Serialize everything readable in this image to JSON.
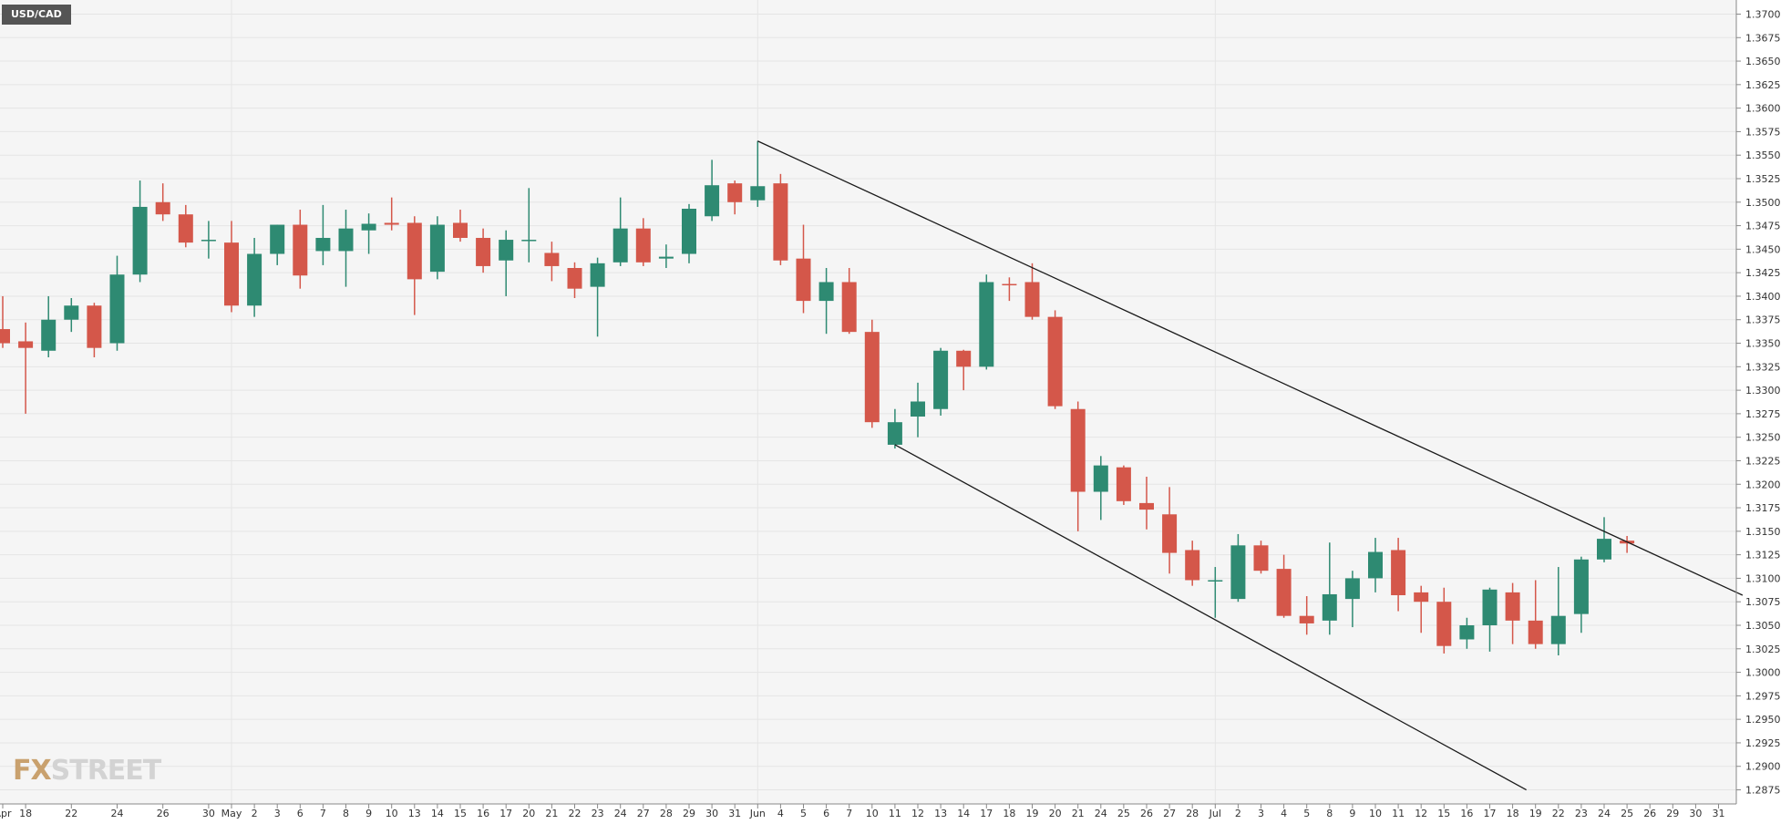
{
  "chart_data": {
    "type": "candlestick",
    "symbol": "USD/CAD",
    "watermark": {
      "part1": "FX",
      "part2": "STREET"
    },
    "colors": {
      "up": "#2e8a72",
      "down": "#d4574a",
      "background": "#f5f5f5",
      "grid": "#e5e5e5",
      "trendline": "#1a1a1a",
      "axis_text": "#333333"
    },
    "grid": true,
    "ylim": [
      1.286,
      1.3715
    ],
    "y_ticks": [
      "1.2875",
      "1.2900",
      "1.2925",
      "1.2950",
      "1.2975",
      "1.3000",
      "1.3025",
      "1.3050",
      "1.3075",
      "1.3100",
      "1.3125",
      "1.3150",
      "1.3175",
      "1.3200",
      "1.3225",
      "1.3250",
      "1.3275",
      "1.3300",
      "1.3325",
      "1.3350",
      "1.3375",
      "1.3400",
      "1.3425",
      "1.3450",
      "1.3475",
      "1.3500",
      "1.3525",
      "1.3550",
      "1.3575",
      "1.3600",
      "1.3625",
      "1.3650",
      "1.3675",
      "1.3700"
    ],
    "x_labels": [
      "Apr",
      "18",
      "",
      "22",
      "",
      "24",
      "",
      "26",
      "",
      "30",
      "May",
      "2",
      "3",
      "6",
      "7",
      "8",
      "9",
      "10",
      "13",
      "14",
      "15",
      "16",
      "17",
      "20",
      "21",
      "22",
      "23",
      "24",
      "27",
      "28",
      "29",
      "30",
      "31",
      "Jun",
      "4",
      "5",
      "6",
      "7",
      "10",
      "11",
      "12",
      "13",
      "14",
      "17",
      "18",
      "19",
      "20",
      "21",
      "24",
      "25",
      "26",
      "27",
      "28",
      "Jul",
      "2",
      "3",
      "4",
      "5",
      "8",
      "9",
      "10",
      "11",
      "12",
      "15",
      "16",
      "17",
      "18",
      "19",
      "22",
      "23",
      "24",
      "25",
      "26",
      "29",
      "30",
      "31"
    ],
    "x_gridlines": [
      "May",
      "Jun",
      "Jul"
    ],
    "candles": [
      {
        "date": "Apr 17",
        "open": 1.3365,
        "high": 1.34,
        "low": 1.3345,
        "close": 1.335
      },
      {
        "date": "Apr 18",
        "open": 1.3352,
        "high": 1.3372,
        "low": 1.3275,
        "close": 1.3345
      },
      {
        "date": "Apr 19",
        "open": 1.3342,
        "high": 1.34,
        "low": 1.3335,
        "close": 1.3375
      },
      {
        "date": "Apr 22",
        "open": 1.3375,
        "high": 1.3398,
        "low": 1.3362,
        "close": 1.339
      },
      {
        "date": "Apr 23",
        "open": 1.339,
        "high": 1.3393,
        "low": 1.3335,
        "close": 1.3345
      },
      {
        "date": "Apr 23b",
        "open": 1.335,
        "high": 1.3443,
        "low": 1.3342,
        "close": 1.3423
      },
      {
        "date": "Apr 24",
        "open": 1.3423,
        "high": 1.3523,
        "low": 1.3415,
        "close": 1.3495
      },
      {
        "date": "Apr 25",
        "open": 1.35,
        "high": 1.352,
        "low": 1.348,
        "close": 1.3487
      },
      {
        "date": "Apr 26",
        "open": 1.3487,
        "high": 1.3497,
        "low": 1.3452,
        "close": 1.3457
      },
      {
        "date": "Apr 29",
        "open": 1.346,
        "high": 1.348,
        "low": 1.344,
        "close": 1.346
      },
      {
        "date": "Apr 30",
        "open": 1.3457,
        "high": 1.348,
        "low": 1.3383,
        "close": 1.339
      },
      {
        "date": "May 1",
        "open": 1.339,
        "high": 1.3462,
        "low": 1.3378,
        "close": 1.3445
      },
      {
        "date": "May 2",
        "open": 1.3445,
        "high": 1.3476,
        "low": 1.3433,
        "close": 1.3476
      },
      {
        "date": "May 3",
        "open": 1.3476,
        "high": 1.3492,
        "low": 1.3408,
        "close": 1.3422
      },
      {
        "date": "May 6",
        "open": 1.3448,
        "high": 1.3497,
        "low": 1.3433,
        "close": 1.3462
      },
      {
        "date": "May 7",
        "open": 1.3448,
        "high": 1.3492,
        "low": 1.341,
        "close": 1.3472
      },
      {
        "date": "May 8",
        "open": 1.347,
        "high": 1.3488,
        "low": 1.3445,
        "close": 1.3477
      },
      {
        "date": "May 9",
        "open": 1.3478,
        "high": 1.3505,
        "low": 1.347,
        "close": 1.3476
      },
      {
        "date": "May 10",
        "open": 1.3478,
        "high": 1.3485,
        "low": 1.338,
        "close": 1.3418
      },
      {
        "date": "May 13",
        "open": 1.3426,
        "high": 1.3485,
        "low": 1.3418,
        "close": 1.3476
      },
      {
        "date": "May 14",
        "open": 1.3478,
        "high": 1.3492,
        "low": 1.3458,
        "close": 1.3462
      },
      {
        "date": "May 15",
        "open": 1.3462,
        "high": 1.3472,
        "low": 1.3425,
        "close": 1.3432
      },
      {
        "date": "May 16",
        "open": 1.3438,
        "high": 1.347,
        "low": 1.34,
        "close": 1.346
      },
      {
        "date": "May 17",
        "open": 1.346,
        "high": 1.3515,
        "low": 1.3436,
        "close": 1.346
      },
      {
        "date": "May 20",
        "open": 1.3446,
        "high": 1.3458,
        "low": 1.3416,
        "close": 1.3432
      },
      {
        "date": "May 21",
        "open": 1.343,
        "high": 1.3436,
        "low": 1.3398,
        "close": 1.3408
      },
      {
        "date": "May 22",
        "open": 1.341,
        "high": 1.3441,
        "low": 1.3357,
        "close": 1.3435
      },
      {
        "date": "May 23",
        "open": 1.3436,
        "high": 1.3505,
        "low": 1.3432,
        "close": 1.3472
      },
      {
        "date": "May 24",
        "open": 1.3472,
        "high": 1.3483,
        "low": 1.3432,
        "close": 1.3436
      },
      {
        "date": "May 27",
        "open": 1.344,
        "high": 1.3455,
        "low": 1.343,
        "close": 1.3442
      },
      {
        "date": "May 28",
        "open": 1.3445,
        "high": 1.3498,
        "low": 1.3435,
        "close": 1.3493
      },
      {
        "date": "May 29",
        "open": 1.3485,
        "high": 1.3545,
        "low": 1.348,
        "close": 1.3518
      },
      {
        "date": "May 30",
        "open": 1.352,
        "high": 1.3523,
        "low": 1.3487,
        "close": 1.35
      },
      {
        "date": "May 31",
        "open": 1.3502,
        "high": 1.3565,
        "low": 1.3495,
        "close": 1.3517
      },
      {
        "date": "Jun 3",
        "open": 1.352,
        "high": 1.353,
        "low": 1.3433,
        "close": 1.3438
      },
      {
        "date": "Jun 4",
        "open": 1.344,
        "high": 1.3476,
        "low": 1.3382,
        "close": 1.3395
      },
      {
        "date": "Jun 5",
        "open": 1.3395,
        "high": 1.343,
        "low": 1.336,
        "close": 1.3415
      },
      {
        "date": "Jun 6",
        "open": 1.3415,
        "high": 1.343,
        "low": 1.336,
        "close": 1.3362
      },
      {
        "date": "Jun 7",
        "open": 1.3362,
        "high": 1.3375,
        "low": 1.326,
        "close": 1.3266
      },
      {
        "date": "Jun 10",
        "open": 1.3242,
        "high": 1.328,
        "low": 1.3238,
        "close": 1.3266
      },
      {
        "date": "Jun 11",
        "open": 1.3272,
        "high": 1.3308,
        "low": 1.325,
        "close": 1.3288
      },
      {
        "date": "Jun 12",
        "open": 1.328,
        "high": 1.3345,
        "low": 1.3273,
        "close": 1.3342
      },
      {
        "date": "Jun 13",
        "open": 1.3342,
        "high": 1.3343,
        "low": 1.33,
        "close": 1.3325
      },
      {
        "date": "Jun 14",
        "open": 1.3325,
        "high": 1.3423,
        "low": 1.3322,
        "close": 1.3415
      },
      {
        "date": "Jun 17",
        "open": 1.3413,
        "high": 1.342,
        "low": 1.3395,
        "close": 1.3412
      },
      {
        "date": "Jun 18",
        "open": 1.3415,
        "high": 1.3435,
        "low": 1.3375,
        "close": 1.3378
      },
      {
        "date": "Jun 19",
        "open": 1.3378,
        "high": 1.3385,
        "low": 1.328,
        "close": 1.3283
      },
      {
        "date": "Jun 20",
        "open": 1.328,
        "high": 1.3288,
        "low": 1.315,
        "close": 1.3192
      },
      {
        "date": "Jun 21",
        "open": 1.3192,
        "high": 1.323,
        "low": 1.3162,
        "close": 1.322
      },
      {
        "date": "Jun 24",
        "open": 1.3218,
        "high": 1.322,
        "low": 1.3178,
        "close": 1.3182
      },
      {
        "date": "Jun 25",
        "open": 1.318,
        "high": 1.3208,
        "low": 1.3152,
        "close": 1.3173
      },
      {
        "date": "Jun 26",
        "open": 1.3168,
        "high": 1.3197,
        "low": 1.3105,
        "close": 1.3127
      },
      {
        "date": "Jun 27",
        "open": 1.313,
        "high": 1.314,
        "low": 1.3092,
        "close": 1.3098
      },
      {
        "date": "Jun 28",
        "open": 1.3098,
        "high": 1.3112,
        "low": 1.3058,
        "close": 1.3098
      },
      {
        "date": "Jul 1",
        "open": 1.3078,
        "high": 1.3147,
        "low": 1.3075,
        "close": 1.3135
      },
      {
        "date": "Jul 2",
        "open": 1.3135,
        "high": 1.314,
        "low": 1.3105,
        "close": 1.3108
      },
      {
        "date": "Jul 3",
        "open": 1.311,
        "high": 1.3125,
        "low": 1.3058,
        "close": 1.306
      },
      {
        "date": "Jul 4",
        "open": 1.306,
        "high": 1.3081,
        "low": 1.304,
        "close": 1.3052
      },
      {
        "date": "Jul 5",
        "open": 1.3055,
        "high": 1.3138,
        "low": 1.304,
        "close": 1.3083
      },
      {
        "date": "Jul 8",
        "open": 1.3078,
        "high": 1.3108,
        "low": 1.3048,
        "close": 1.31
      },
      {
        "date": "Jul 9",
        "open": 1.31,
        "high": 1.3143,
        "low": 1.3085,
        "close": 1.3128
      },
      {
        "date": "Jul 10",
        "open": 1.313,
        "high": 1.3143,
        "low": 1.3065,
        "close": 1.3082
      },
      {
        "date": "Jul 11",
        "open": 1.3085,
        "high": 1.3092,
        "low": 1.3042,
        "close": 1.3075
      },
      {
        "date": "Jul 12",
        "open": 1.3075,
        "high": 1.309,
        "low": 1.302,
        "close": 1.3028
      },
      {
        "date": "Jul 15",
        "open": 1.3035,
        "high": 1.3058,
        "low": 1.3025,
        "close": 1.305
      },
      {
        "date": "Jul 16",
        "open": 1.305,
        "high": 1.309,
        "low": 1.3022,
        "close": 1.3088
      },
      {
        "date": "Jul 17",
        "open": 1.3085,
        "high": 1.3095,
        "low": 1.303,
        "close": 1.3055
      },
      {
        "date": "Jul 18",
        "open": 1.3055,
        "high": 1.3098,
        "low": 1.3025,
        "close": 1.303
      },
      {
        "date": "Jul 19",
        "open": 1.303,
        "high": 1.3112,
        "low": 1.3018,
        "close": 1.306
      },
      {
        "date": "Jul 22",
        "open": 1.3062,
        "high": 1.3123,
        "low": 1.3042,
        "close": 1.312
      },
      {
        "date": "Jul 23",
        "open": 1.312,
        "high": 1.3165,
        "low": 1.3117,
        "close": 1.3142
      },
      {
        "date": "Jul 24",
        "open": 1.314,
        "high": 1.3145,
        "low": 1.3127,
        "close": 1.3137
      }
    ],
    "trendlines": [
      {
        "name": "upper-trendline",
        "from": {
          "index": 33,
          "price": 1.3565
        },
        "to": {
          "index": 76.05,
          "price": 1.3082
        }
      },
      {
        "name": "lower-trendline",
        "from": {
          "index": 39,
          "price": 1.3242
        },
        "to": {
          "index": 66.6,
          "price": 1.2875
        }
      }
    ]
  }
}
